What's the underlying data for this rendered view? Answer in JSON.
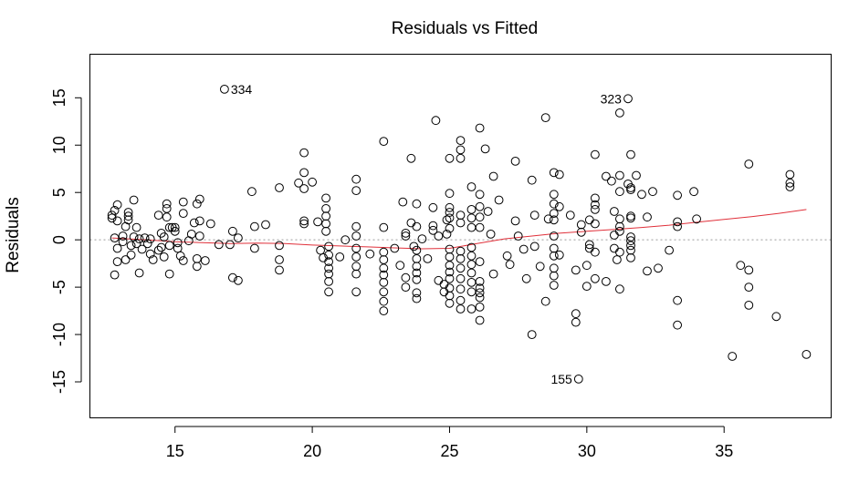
{
  "chart_data": {
    "type": "scatter",
    "title": "Residuals vs Fitted",
    "xlabel": "",
    "ylabel": "Residuals",
    "xlim": [
      11.9,
      38.9
    ],
    "ylim": [
      -18.8,
      19.6
    ],
    "xticks": [
      15,
      20,
      25,
      30,
      35
    ],
    "xticklabels": [
      "15",
      "20",
      "25",
      "30",
      "35"
    ],
    "yticks": [
      -15,
      -10,
      -5,
      0,
      5,
      10,
      15
    ],
    "yticklabels": [
      "-15",
      "-10",
      "-5",
      "0",
      "5",
      "10",
      "15"
    ],
    "zero_line": 0,
    "grid": false,
    "annotations": [
      {
        "label": "334",
        "x": 16.8,
        "y": 15.9
      },
      {
        "label": "323",
        "x": 31.5,
        "y": 14.9
      },
      {
        "label": "155",
        "x": 29.7,
        "y": -14.7
      }
    ],
    "smooth": {
      "x": [
        12.7,
        14.0,
        15.0,
        16.0,
        17.0,
        18.0,
        19.0,
        20.0,
        21.0,
        22.0,
        23.0,
        24.0,
        25.0,
        26.0,
        27.0,
        28.0,
        29.0,
        30.0,
        31.0,
        32.0,
        33.0,
        34.0,
        35.0,
        36.0,
        37.0,
        38.0
      ],
      "y": [
        0.2,
        0.0,
        -0.2,
        -0.3,
        -0.4,
        -0.35,
        -0.4,
        -0.55,
        -0.65,
        -0.75,
        -0.85,
        -0.95,
        -0.9,
        -0.4,
        0.1,
        0.4,
        0.7,
        0.9,
        1.1,
        1.3,
        1.55,
        1.85,
        2.15,
        2.45,
        2.8,
        3.2
      ]
    },
    "points": [
      [
        12.7,
        2.6
      ],
      [
        12.7,
        2.3
      ],
      [
        12.8,
        3.1
      ],
      [
        12.9,
        3.7
      ],
      [
        12.9,
        2.0
      ],
      [
        12.8,
        0.2
      ],
      [
        12.9,
        -0.9
      ],
      [
        12.9,
        -2.3
      ],
      [
        12.8,
        -3.7
      ],
      [
        13.1,
        0.4
      ],
      [
        13.2,
        1.4
      ],
      [
        13.1,
        -0.2
      ],
      [
        13.3,
        2.5
      ],
      [
        13.3,
        2.9
      ],
      [
        13.3,
        2.1
      ],
      [
        13.2,
        -2.1
      ],
      [
        13.4,
        -1.6
      ],
      [
        13.4,
        -0.6
      ],
      [
        13.5,
        0.3
      ],
      [
        13.5,
        4.2
      ],
      [
        13.6,
        1.3
      ],
      [
        13.6,
        -0.4
      ],
      [
        13.7,
        -3.5
      ],
      [
        13.7,
        0.1
      ],
      [
        13.8,
        -1.0
      ],
      [
        13.9,
        0.2
      ],
      [
        14.0,
        -0.4
      ],
      [
        14.1,
        -1.5
      ],
      [
        14.1,
        0.1
      ],
      [
        14.2,
        -2.1
      ],
      [
        14.4,
        2.6
      ],
      [
        14.4,
        -1.1
      ],
      [
        14.5,
        0.7
      ],
      [
        14.5,
        -0.8
      ],
      [
        14.6,
        0.3
      ],
      [
        14.6,
        -1.8
      ],
      [
        14.7,
        3.8
      ],
      [
        14.7,
        2.4
      ],
      [
        14.7,
        3.3
      ],
      [
        14.8,
        1.3
      ],
      [
        14.8,
        -0.6
      ],
      [
        14.8,
        -3.6
      ],
      [
        14.9,
        1.3
      ],
      [
        15.0,
        0.9
      ],
      [
        15.0,
        1.3
      ],
      [
        15.1,
        -0.3
      ],
      [
        15.1,
        -0.9
      ],
      [
        15.2,
        -1.7
      ],
      [
        15.3,
        4.0
      ],
      [
        15.3,
        2.8
      ],
      [
        15.3,
        -2.2
      ],
      [
        15.5,
        -0.1
      ],
      [
        15.6,
        0.6
      ],
      [
        15.7,
        1.8
      ],
      [
        15.8,
        3.8
      ],
      [
        15.8,
        -2.0
      ],
      [
        15.8,
        -2.8
      ],
      [
        15.9,
        4.3
      ],
      [
        15.9,
        2.0
      ],
      [
        15.9,
        0.4
      ],
      [
        16.1,
        -2.2
      ],
      [
        16.3,
        1.7
      ],
      [
        16.6,
        -0.5
      ],
      [
        16.8,
        15.9
      ],
      [
        17.0,
        -0.5
      ],
      [
        17.1,
        0.9
      ],
      [
        17.1,
        -4.0
      ],
      [
        17.3,
        -4.3
      ],
      [
        17.3,
        0.2
      ],
      [
        17.8,
        5.1
      ],
      [
        17.9,
        1.4
      ],
      [
        17.9,
        -0.9
      ],
      [
        18.3,
        1.6
      ],
      [
        18.8,
        5.5
      ],
      [
        18.8,
        -0.6
      ],
      [
        18.8,
        -2.1
      ],
      [
        18.8,
        -3.2
      ],
      [
        19.5,
        6.0
      ],
      [
        19.7,
        9.2
      ],
      [
        19.7,
        7.1
      ],
      [
        19.7,
        5.4
      ],
      [
        19.7,
        2.0
      ],
      [
        19.7,
        1.7
      ],
      [
        20.0,
        6.1
      ],
      [
        20.2,
        1.9
      ],
      [
        20.3,
        -1.1
      ],
      [
        20.4,
        -1.9
      ],
      [
        20.5,
        4.4
      ],
      [
        20.5,
        3.3
      ],
      [
        20.5,
        2.5
      ],
      [
        20.5,
        1.7
      ],
      [
        20.5,
        0.9
      ],
      [
        20.6,
        -0.7
      ],
      [
        20.6,
        -1.6
      ],
      [
        20.6,
        -2.3
      ],
      [
        20.6,
        -3.0
      ],
      [
        20.6,
        -3.6
      ],
      [
        20.6,
        -4.4
      ],
      [
        20.6,
        -5.5
      ],
      [
        21.0,
        -1.8
      ],
      [
        21.2,
        0.0
      ],
      [
        21.6,
        6.4
      ],
      [
        21.6,
        5.2
      ],
      [
        21.6,
        1.4
      ],
      [
        21.6,
        0.4
      ],
      [
        21.6,
        -0.9
      ],
      [
        21.6,
        -1.8
      ],
      [
        21.6,
        -2.8
      ],
      [
        21.6,
        -3.6
      ],
      [
        21.6,
        -5.5
      ],
      [
        22.1,
        -1.5
      ],
      [
        22.6,
        10.4
      ],
      [
        22.6,
        1.3
      ],
      [
        22.6,
        -1.3
      ],
      [
        22.6,
        -2.1
      ],
      [
        22.6,
        -3.0
      ],
      [
        22.6,
        -3.7
      ],
      [
        22.6,
        -4.5
      ],
      [
        22.6,
        -5.5
      ],
      [
        22.6,
        -6.5
      ],
      [
        22.6,
        -7.5
      ],
      [
        23.0,
        -0.9
      ],
      [
        23.2,
        -2.7
      ],
      [
        23.3,
        4.0
      ],
      [
        23.4,
        0.7
      ],
      [
        23.4,
        0.4
      ],
      [
        23.4,
        -4.0
      ],
      [
        23.4,
        -5.0
      ],
      [
        23.6,
        8.6
      ],
      [
        23.6,
        1.8
      ],
      [
        23.7,
        -0.7
      ],
      [
        23.8,
        3.8
      ],
      [
        23.8,
        1.4
      ],
      [
        23.8,
        -1.1
      ],
      [
        23.8,
        -2.0
      ],
      [
        23.8,
        -2.8
      ],
      [
        23.8,
        -3.5
      ],
      [
        23.8,
        -4.2
      ],
      [
        23.8,
        -5.6
      ],
      [
        23.8,
        -6.2
      ],
      [
        24.0,
        0.1
      ],
      [
        24.2,
        -2.0
      ],
      [
        24.4,
        3.4
      ],
      [
        24.4,
        1.5
      ],
      [
        24.4,
        1.0
      ],
      [
        24.5,
        12.6
      ],
      [
        24.6,
        0.4
      ],
      [
        24.6,
        -4.3
      ],
      [
        24.8,
        -4.7
      ],
      [
        24.8,
        -5.5
      ],
      [
        24.9,
        2.1
      ],
      [
        24.9,
        0.6
      ],
      [
        25.0,
        8.6
      ],
      [
        25.0,
        4.9
      ],
      [
        25.0,
        3.4
      ],
      [
        25.0,
        2.9
      ],
      [
        25.0,
        2.3
      ],
      [
        25.0,
        1.2
      ],
      [
        25.0,
        -1.0
      ],
      [
        25.0,
        -1.8
      ],
      [
        25.0,
        -2.7
      ],
      [
        25.0,
        -3.4
      ],
      [
        25.0,
        -4.1
      ],
      [
        25.0,
        -5.1
      ],
      [
        25.0,
        -5.9
      ],
      [
        25.0,
        -6.7
      ],
      [
        25.4,
        10.5
      ],
      [
        25.4,
        9.5
      ],
      [
        25.4,
        8.6
      ],
      [
        25.4,
        2.6
      ],
      [
        25.4,
        1.8
      ],
      [
        25.4,
        -1.2
      ],
      [
        25.4,
        -2.0
      ],
      [
        25.4,
        -3.0
      ],
      [
        25.4,
        -4.1
      ],
      [
        25.4,
        -5.2
      ],
      [
        25.4,
        -6.4
      ],
      [
        25.4,
        -7.3
      ],
      [
        25.8,
        5.6
      ],
      [
        25.8,
        3.2
      ],
      [
        25.8,
        2.3
      ],
      [
        25.8,
        1.3
      ],
      [
        25.8,
        -0.8
      ],
      [
        25.8,
        -1.7
      ],
      [
        25.8,
        -2.6
      ],
      [
        25.8,
        -3.5
      ],
      [
        25.8,
        -4.5
      ],
      [
        25.8,
        -5.5
      ],
      [
        25.8,
        -7.3
      ],
      [
        26.1,
        11.8
      ],
      [
        26.1,
        4.8
      ],
      [
        26.1,
        3.5
      ],
      [
        26.1,
        2.4
      ],
      [
        26.1,
        1.3
      ],
      [
        26.1,
        -2.3
      ],
      [
        26.1,
        -4.4
      ],
      [
        26.1,
        -5.1
      ],
      [
        26.1,
        -5.6
      ],
      [
        26.1,
        -6.1
      ],
      [
        26.1,
        -7.1
      ],
      [
        26.1,
        -8.5
      ],
      [
        26.3,
        9.6
      ],
      [
        26.4,
        3.0
      ],
      [
        26.5,
        0.6
      ],
      [
        26.6,
        6.7
      ],
      [
        26.6,
        -3.6
      ],
      [
        26.8,
        4.2
      ],
      [
        27.1,
        -1.7
      ],
      [
        27.2,
        -2.6
      ],
      [
        27.4,
        8.3
      ],
      [
        27.4,
        2.0
      ],
      [
        27.5,
        0.4
      ],
      [
        27.7,
        -1.0
      ],
      [
        27.8,
        -4.1
      ],
      [
        28.0,
        6.3
      ],
      [
        28.0,
        -10.0
      ],
      [
        28.1,
        2.6
      ],
      [
        28.1,
        -0.7
      ],
      [
        28.3,
        -2.8
      ],
      [
        28.5,
        12.9
      ],
      [
        28.5,
        -6.5
      ],
      [
        28.6,
        2.2
      ],
      [
        28.8,
        7.1
      ],
      [
        28.8,
        4.8
      ],
      [
        28.8,
        3.8
      ],
      [
        28.8,
        2.8
      ],
      [
        28.8,
        2.1
      ],
      [
        28.8,
        0.4
      ],
      [
        28.8,
        -0.9
      ],
      [
        28.8,
        -1.7
      ],
      [
        28.8,
        -3.0
      ],
      [
        28.8,
        -3.8
      ],
      [
        28.8,
        -4.8
      ],
      [
        29.0,
        6.9
      ],
      [
        29.0,
        3.5
      ],
      [
        29.0,
        -1.6
      ],
      [
        29.4,
        2.6
      ],
      [
        29.6,
        -7.8
      ],
      [
        29.6,
        -8.7
      ],
      [
        29.6,
        -3.2
      ],
      [
        29.7,
        -14.7
      ],
      [
        29.8,
        1.6
      ],
      [
        29.8,
        0.8
      ],
      [
        30.0,
        -2.7
      ],
      [
        30.0,
        -4.9
      ],
      [
        30.1,
        2.1
      ],
      [
        30.1,
        -0.5
      ],
      [
        30.1,
        -0.9
      ],
      [
        30.3,
        9.0
      ],
      [
        30.3,
        4.4
      ],
      [
        30.3,
        3.7
      ],
      [
        30.3,
        3.2
      ],
      [
        30.3,
        1.7
      ],
      [
        30.3,
        -1.3
      ],
      [
        30.3,
        -4.1
      ],
      [
        30.7,
        6.7
      ],
      [
        30.7,
        -4.4
      ],
      [
        30.9,
        6.2
      ],
      [
        31.0,
        3.0
      ],
      [
        31.0,
        0.5
      ],
      [
        31.0,
        -0.9
      ],
      [
        31.1,
        -2.1
      ],
      [
        31.2,
        13.4
      ],
      [
        31.2,
        6.8
      ],
      [
        31.2,
        5.1
      ],
      [
        31.2,
        2.2
      ],
      [
        31.2,
        1.4
      ],
      [
        31.2,
        0.9
      ],
      [
        31.2,
        -1.3
      ],
      [
        31.2,
        -5.2
      ],
      [
        31.5,
        14.9
      ],
      [
        31.5,
        5.9
      ],
      [
        31.6,
        9.0
      ],
      [
        31.6,
        5.5
      ],
      [
        31.6,
        5.3
      ],
      [
        31.6,
        2.5
      ],
      [
        31.6,
        2.3
      ],
      [
        31.6,
        0.3
      ],
      [
        31.6,
        -0.1
      ],
      [
        31.6,
        -0.6
      ],
      [
        31.6,
        -1.1
      ],
      [
        31.6,
        -1.9
      ],
      [
        31.8,
        6.8
      ],
      [
        32.0,
        4.8
      ],
      [
        32.2,
        2.4
      ],
      [
        32.2,
        -3.3
      ],
      [
        32.4,
        5.1
      ],
      [
        32.6,
        -3.0
      ],
      [
        33.0,
        -1.1
      ],
      [
        33.3,
        4.7
      ],
      [
        33.3,
        1.9
      ],
      [
        33.3,
        1.4
      ],
      [
        33.3,
        -6.4
      ],
      [
        33.3,
        -9.0
      ],
      [
        33.9,
        5.1
      ],
      [
        34.0,
        2.2
      ],
      [
        35.3,
        -12.3
      ],
      [
        35.6,
        -2.7
      ],
      [
        35.9,
        8.0
      ],
      [
        35.9,
        -5.0
      ],
      [
        35.9,
        -3.2
      ],
      [
        35.9,
        -6.9
      ],
      [
        36.9,
        -8.1
      ],
      [
        37.4,
        6.9
      ],
      [
        37.4,
        6.0
      ],
      [
        37.4,
        5.6
      ],
      [
        38.0,
        -12.1
      ]
    ]
  }
}
